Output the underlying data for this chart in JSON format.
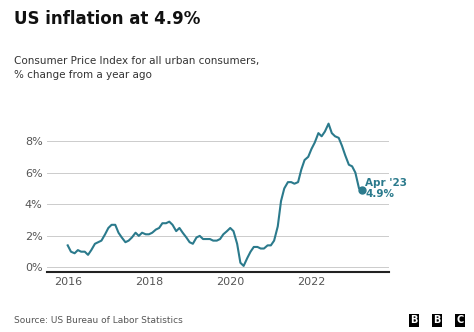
{
  "title": "US inflation at 4.9%",
  "subtitle": "Consumer Price Index for all urban consumers,\n% change from a year ago",
  "source": "Source: US Bureau of Labor Statistics",
  "line_color": "#2b7a8c",
  "dot_color": "#2b7a8c",
  "annotation_label": "Apr '23\n4.9%",
  "annotation_color": "#2b7a8c",
  "bg_color": "#ffffff",
  "title_color": "#111111",
  "subtitle_color": "#333333",
  "source_color": "#555555",
  "ytick_labels": [
    "0%",
    "2%",
    "4%",
    "6%",
    "8%"
  ],
  "ytick_values": [
    0,
    2,
    4,
    6,
    8
  ],
  "xtick_labels": [
    "2016",
    "2018",
    "2020",
    "2022"
  ],
  "xtick_values": [
    2016,
    2018,
    2020,
    2022
  ],
  "ylim": [
    -0.3,
    10.2
  ],
  "xlim": [
    2015.5,
    2023.9
  ],
  "data": {
    "dates": [
      2016.0,
      2016.08,
      2016.17,
      2016.25,
      2016.33,
      2016.42,
      2016.5,
      2016.58,
      2016.67,
      2016.75,
      2016.83,
      2016.92,
      2017.0,
      2017.08,
      2017.17,
      2017.25,
      2017.33,
      2017.42,
      2017.5,
      2017.58,
      2017.67,
      2017.75,
      2017.83,
      2017.92,
      2018.0,
      2018.08,
      2018.17,
      2018.25,
      2018.33,
      2018.42,
      2018.5,
      2018.58,
      2018.67,
      2018.75,
      2018.83,
      2018.92,
      2019.0,
      2019.08,
      2019.17,
      2019.25,
      2019.33,
      2019.42,
      2019.5,
      2019.58,
      2019.67,
      2019.75,
      2019.83,
      2019.92,
      2020.0,
      2020.08,
      2020.17,
      2020.25,
      2020.33,
      2020.42,
      2020.5,
      2020.58,
      2020.67,
      2020.75,
      2020.83,
      2020.92,
      2021.0,
      2021.08,
      2021.17,
      2021.25,
      2021.33,
      2021.42,
      2021.5,
      2021.58,
      2021.67,
      2021.75,
      2021.83,
      2021.92,
      2022.0,
      2022.08,
      2022.17,
      2022.25,
      2022.33,
      2022.42,
      2022.5,
      2022.58,
      2022.67,
      2022.75,
      2022.83,
      2022.92,
      2023.0,
      2023.08,
      2023.17,
      2023.25
    ],
    "values": [
      1.4,
      1.0,
      0.9,
      1.1,
      1.0,
      1.0,
      0.8,
      1.1,
      1.5,
      1.6,
      1.7,
      2.1,
      2.5,
      2.7,
      2.7,
      2.2,
      1.9,
      1.6,
      1.7,
      1.9,
      2.2,
      2.0,
      2.2,
      2.1,
      2.1,
      2.2,
      2.4,
      2.5,
      2.8,
      2.8,
      2.9,
      2.7,
      2.3,
      2.5,
      2.2,
      1.9,
      1.6,
      1.5,
      1.9,
      2.0,
      1.8,
      1.8,
      1.8,
      1.7,
      1.7,
      1.8,
      2.1,
      2.3,
      2.5,
      2.3,
      1.5,
      0.3,
      0.1,
      0.6,
      1.0,
      1.3,
      1.3,
      1.2,
      1.2,
      1.4,
      1.4,
      1.7,
      2.6,
      4.2,
      5.0,
      5.4,
      5.4,
      5.3,
      5.4,
      6.2,
      6.8,
      7.0,
      7.5,
      7.9,
      8.5,
      8.3,
      8.6,
      9.1,
      8.5,
      8.3,
      8.2,
      7.7,
      7.1,
      6.5,
      6.4,
      6.0,
      5.0,
      4.9
    ]
  }
}
